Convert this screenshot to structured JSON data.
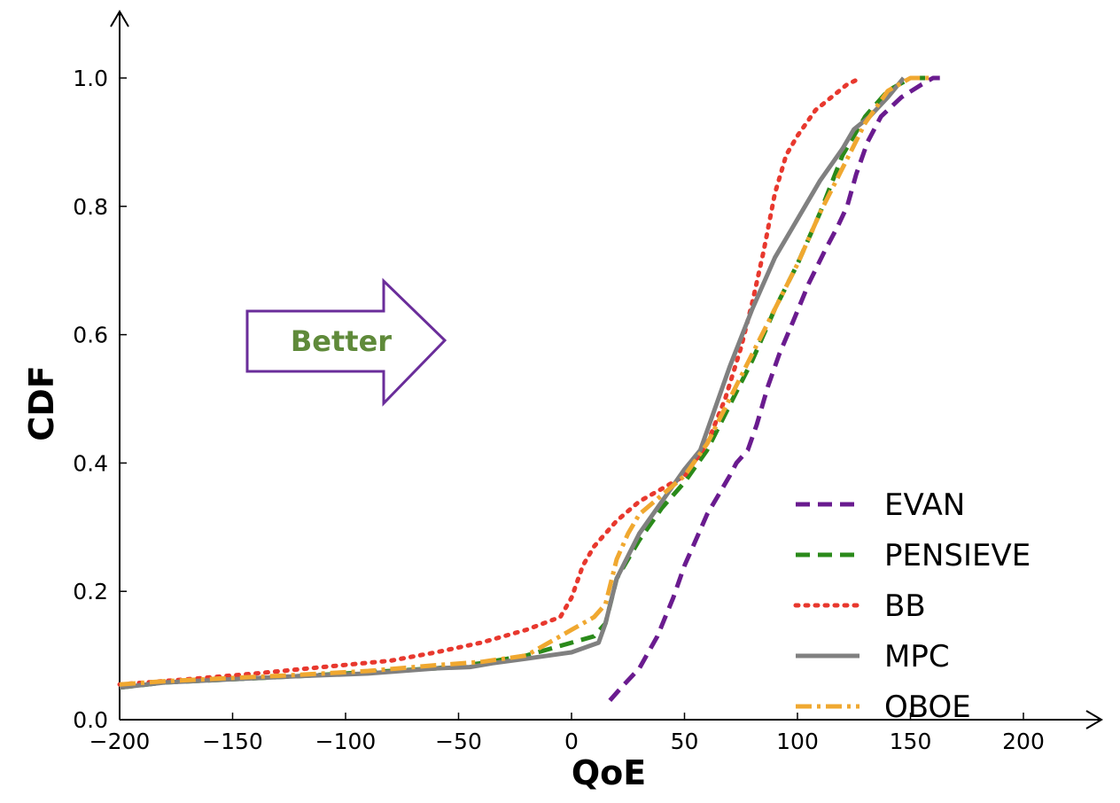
{
  "chart_data": {
    "type": "line",
    "title": "",
    "xlabel": "QoE",
    "ylabel": "CDF",
    "xlim": [
      -200,
      230
    ],
    "ylim": [
      0,
      1.05
    ],
    "xticks": [
      -200,
      -150,
      -100,
      -50,
      0,
      50,
      100,
      150,
      200
    ],
    "yticks": [
      0.0,
      0.2,
      0.4,
      0.6,
      0.8,
      1.0
    ],
    "xtick_labels": [
      "−200",
      "−150",
      "−100",
      "−50",
      "0",
      "50",
      "100",
      "150",
      "200"
    ],
    "ytick_labels": [
      "0.0",
      "0.2",
      "0.4",
      "0.6",
      "0.8",
      "1.0"
    ],
    "legend_position": "bottom-right",
    "annotation": {
      "text": "Better",
      "color": "#5f8a3a",
      "arrow_color": "#6a2d9a"
    },
    "series": [
      {
        "name": "EVAN",
        "color": "#6a1b8f",
        "style": "dashed",
        "x": [
          17,
          22,
          30,
          38,
          45,
          50,
          55,
          60,
          65,
          70,
          73,
          78,
          82,
          87,
          92,
          98,
          105,
          112,
          118,
          122,
          126,
          131,
          137,
          146,
          155,
          160,
          163
        ],
        "y": [
          0.03,
          0.05,
          0.08,
          0.13,
          0.19,
          0.24,
          0.28,
          0.32,
          0.35,
          0.38,
          0.4,
          0.42,
          0.46,
          0.52,
          0.57,
          0.62,
          0.68,
          0.73,
          0.77,
          0.8,
          0.85,
          0.9,
          0.94,
          0.97,
          0.99,
          1.0,
          1.0
        ]
      },
      {
        "name": "PENSIEVE",
        "color": "#2a8a1a",
        "style": "dashed",
        "x": [
          -200,
          -180,
          -150,
          -120,
          -90,
          -60,
          -40,
          -20,
          0,
          10,
          15,
          20,
          30,
          40,
          50,
          60,
          70,
          80,
          90,
          100,
          110,
          120,
          130,
          140,
          150,
          160
        ],
        "y": [
          0.05,
          0.058,
          0.063,
          0.068,
          0.074,
          0.08,
          0.088,
          0.1,
          0.12,
          0.13,
          0.15,
          0.22,
          0.28,
          0.33,
          0.37,
          0.42,
          0.49,
          0.56,
          0.64,
          0.71,
          0.79,
          0.88,
          0.94,
          0.98,
          1.0,
          1.0
        ]
      },
      {
        "name": "BB",
        "color": "#e8382e",
        "style": "dotted",
        "x": [
          -200,
          -170,
          -140,
          -110,
          -80,
          -60,
          -40,
          -20,
          -5,
          0,
          5,
          10,
          20,
          30,
          40,
          50,
          60,
          68,
          75,
          80,
          85,
          90,
          95,
          100,
          108,
          115,
          122,
          128
        ],
        "y": [
          0.055,
          0.063,
          0.072,
          0.082,
          0.092,
          0.105,
          0.12,
          0.14,
          0.16,
          0.19,
          0.24,
          0.27,
          0.31,
          0.34,
          0.36,
          0.38,
          0.43,
          0.5,
          0.58,
          0.65,
          0.73,
          0.82,
          0.88,
          0.91,
          0.95,
          0.97,
          0.99,
          1.0
        ]
      },
      {
        "name": "MPC",
        "color": "#808080",
        "style": "solid",
        "x": [
          -200,
          -180,
          -150,
          -120,
          -90,
          -60,
          -45,
          -35,
          -20,
          0,
          12,
          15,
          20,
          30,
          40,
          50,
          57,
          62,
          70,
          80,
          90,
          100,
          110,
          120,
          125,
          132,
          140,
          147
        ],
        "y": [
          0.05,
          0.058,
          0.063,
          0.068,
          0.072,
          0.08,
          0.082,
          0.088,
          0.095,
          0.105,
          0.12,
          0.15,
          0.22,
          0.29,
          0.34,
          0.39,
          0.42,
          0.47,
          0.55,
          0.64,
          0.72,
          0.78,
          0.84,
          0.89,
          0.92,
          0.94,
          0.97,
          1.0
        ]
      },
      {
        "name": "OBOE",
        "color": "#f0a830",
        "style": "dashdot",
        "x": [
          -200,
          -180,
          -150,
          -120,
          -90,
          -60,
          -40,
          -20,
          0,
          10,
          15,
          20,
          25,
          30,
          40,
          50,
          60,
          70,
          80,
          90,
          100,
          110,
          120,
          130,
          140,
          150,
          155,
          160
        ],
        "y": [
          0.055,
          0.06,
          0.065,
          0.07,
          0.076,
          0.085,
          0.09,
          0.1,
          0.14,
          0.16,
          0.18,
          0.25,
          0.29,
          0.32,
          0.35,
          0.38,
          0.43,
          0.5,
          0.57,
          0.64,
          0.71,
          0.79,
          0.86,
          0.93,
          0.98,
          1.0,
          1.0,
          1.0
        ]
      }
    ]
  }
}
